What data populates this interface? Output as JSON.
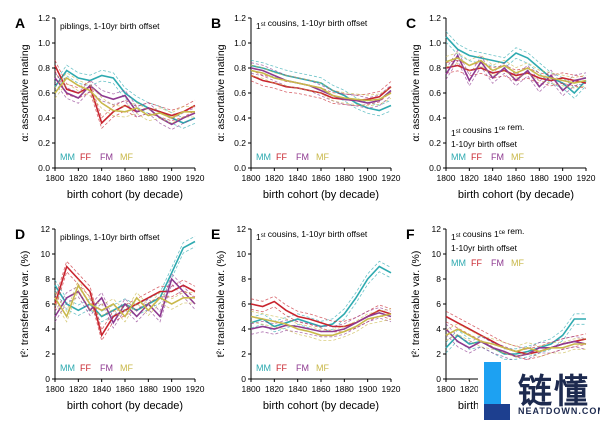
{
  "series_colors": {
    "MM": "#2eaab0",
    "FF": "#c8242e",
    "FM": "#8e3a90",
    "MF": "#c9b84a"
  },
  "watermark": {
    "big": "链懂",
    "small": "NEATDOWN.COM"
  },
  "chart_data": [
    {
      "type": "line",
      "panel": "A",
      "title": "piblings, 1-10yr birth offset",
      "xlabel": "birth cohort (by decade)",
      "ylabel": "α: assortative mating",
      "ylim": [
        0,
        1.2
      ],
      "yticks": [
        0,
        0.2,
        0.4,
        0.6,
        0.8,
        1.0,
        1.2
      ],
      "xlim": [
        1800,
        1920
      ],
      "xticks": [
        1800,
        1820,
        1840,
        1860,
        1880,
        1900,
        1920
      ],
      "legend": [
        "MM",
        "FF",
        "FM",
        "MF"
      ],
      "legend_position": "bottom-left",
      "grid": false,
      "x": [
        1800,
        1810,
        1820,
        1830,
        1840,
        1850,
        1860,
        1870,
        1880,
        1890,
        1900,
        1910,
        1920
      ],
      "series": [
        {
          "name": "MM",
          "values": [
            0.65,
            0.78,
            0.72,
            0.7,
            0.74,
            0.72,
            0.6,
            0.53,
            0.48,
            0.45,
            0.4,
            0.36,
            0.4
          ]
        },
        {
          "name": "FF",
          "values": [
            0.82,
            0.63,
            0.6,
            0.65,
            0.36,
            0.45,
            0.5,
            0.45,
            0.48,
            0.45,
            0.42,
            0.45,
            0.5
          ]
        },
        {
          "name": "FM",
          "values": [
            0.72,
            0.6,
            0.56,
            0.66,
            0.58,
            0.55,
            0.58,
            0.45,
            0.48,
            0.4,
            0.35,
            0.4,
            0.44
          ]
        },
        {
          "name": "MF",
          "values": [
            0.6,
            0.72,
            0.66,
            0.62,
            0.52,
            0.46,
            0.45,
            0.48,
            0.42,
            0.44,
            0.4,
            0.45,
            0.45
          ]
        }
      ]
    },
    {
      "type": "line",
      "panel": "B",
      "title": "1st cousins, 1-10yr birth offset",
      "xlabel": "birth cohort (by decade)",
      "ylabel": "α: assortative mating",
      "ylim": [
        0,
        1.2
      ],
      "yticks": [
        0,
        0.2,
        0.4,
        0.6,
        0.8,
        1.0,
        1.2
      ],
      "xlim": [
        1800,
        1920
      ],
      "xticks": [
        1800,
        1820,
        1840,
        1860,
        1880,
        1900,
        1920
      ],
      "legend": [
        "MM",
        "FF",
        "FM",
        "MF"
      ],
      "legend_position": "bottom-left",
      "grid": false,
      "x": [
        1800,
        1810,
        1820,
        1830,
        1840,
        1850,
        1860,
        1870,
        1880,
        1890,
        1900,
        1910,
        1920
      ],
      "series": [
        {
          "name": "MM",
          "values": [
            0.82,
            0.8,
            0.77,
            0.74,
            0.72,
            0.7,
            0.68,
            0.62,
            0.58,
            0.52,
            0.48,
            0.46,
            0.5
          ]
        },
        {
          "name": "FF",
          "values": [
            0.74,
            0.7,
            0.68,
            0.65,
            0.64,
            0.62,
            0.6,
            0.56,
            0.55,
            0.54,
            0.55,
            0.57,
            0.65
          ]
        },
        {
          "name": "FM",
          "values": [
            0.8,
            0.78,
            0.74,
            0.7,
            0.68,
            0.66,
            0.62,
            0.58,
            0.55,
            0.54,
            0.52,
            0.54,
            0.62
          ]
        },
        {
          "name": "MF",
          "values": [
            0.78,
            0.76,
            0.72,
            0.7,
            0.68,
            0.66,
            0.64,
            0.58,
            0.56,
            0.55,
            0.54,
            0.55,
            0.6
          ]
        }
      ]
    },
    {
      "type": "line",
      "panel": "C",
      "title": "1st cousins 1ce rem.",
      "title_line2": "1-10yr birth offset",
      "xlabel": "birth cohort (by decade)",
      "ylabel": "α: assortative mating",
      "ylim": [
        0,
        1.2
      ],
      "yticks": [
        0,
        0.2,
        0.4,
        0.6,
        0.8,
        1.0,
        1.2
      ],
      "xlim": [
        1800,
        1920
      ],
      "xticks": [
        1800,
        1820,
        1840,
        1860,
        1880,
        1900,
        1920
      ],
      "legend": [
        "MM",
        "FF",
        "FM",
        "MF"
      ],
      "legend_position": "bottom-left",
      "grid": false,
      "x": [
        1800,
        1810,
        1820,
        1830,
        1840,
        1850,
        1860,
        1870,
        1880,
        1890,
        1900,
        1910,
        1920
      ],
      "series": [
        {
          "name": "MM",
          "values": [
            1.05,
            0.95,
            0.9,
            0.88,
            0.86,
            0.84,
            0.92,
            0.88,
            0.8,
            0.72,
            0.68,
            0.6,
            0.7
          ]
        },
        {
          "name": "FF",
          "values": [
            0.8,
            0.82,
            0.78,
            0.8,
            0.76,
            0.78,
            0.74,
            0.76,
            0.72,
            0.7,
            0.72,
            0.7,
            0.68
          ]
        },
        {
          "name": "FM",
          "values": [
            0.75,
            0.9,
            0.7,
            0.85,
            0.72,
            0.8,
            0.7,
            0.78,
            0.65,
            0.74,
            0.62,
            0.7,
            0.72
          ]
        },
        {
          "name": "MF",
          "values": [
            0.85,
            0.88,
            0.82,
            0.86,
            0.78,
            0.82,
            0.76,
            0.8,
            0.74,
            0.72,
            0.7,
            0.68,
            0.7
          ]
        }
      ]
    },
    {
      "type": "line",
      "panel": "D",
      "title": "piblings, 1-10yr birth offset",
      "xlabel": "birth cohort (by decade)",
      "ylabel": "t²: transferable var. (%)",
      "ylim": [
        0,
        12
      ],
      "yticks": [
        0,
        2,
        4,
        6,
        8,
        10,
        12
      ],
      "xlim": [
        1800,
        1920
      ],
      "xticks": [
        1800,
        1820,
        1840,
        1860,
        1880,
        1900,
        1920
      ],
      "legend": [
        "MM",
        "FF",
        "FM",
        "MF"
      ],
      "legend_position": "bottom-left",
      "grid": false,
      "x": [
        1800,
        1810,
        1820,
        1830,
        1840,
        1850,
        1860,
        1870,
        1880,
        1890,
        1900,
        1910,
        1920
      ],
      "series": [
        {
          "name": "MM",
          "values": [
            7.5,
            6.0,
            5.5,
            6.0,
            5.0,
            5.5,
            6.0,
            5.5,
            6.0,
            6.5,
            8.5,
            10.5,
            11.0
          ]
        },
        {
          "name": "FF",
          "values": [
            6.0,
            9.0,
            8.0,
            7.0,
            3.5,
            5.0,
            5.5,
            6.0,
            6.5,
            7.0,
            7.0,
            7.5,
            7.0
          ]
        },
        {
          "name": "FM",
          "values": [
            5.0,
            6.5,
            7.0,
            5.5,
            6.5,
            4.5,
            6.0,
            5.0,
            6.0,
            5.0,
            8.0,
            7.0,
            6.0
          ]
        },
        {
          "name": "MF",
          "values": [
            6.5,
            5.0,
            7.5,
            6.0,
            5.5,
            6.0,
            5.0,
            6.5,
            5.5,
            6.5,
            6.0,
            6.5,
            6.5
          ]
        }
      ]
    },
    {
      "type": "line",
      "panel": "E",
      "title": "1st cousins, 1-10yr birth offset",
      "xlabel": "birth cohort (by decade)",
      "ylabel": "t²: transferable var. (%)",
      "ylim": [
        0,
        12
      ],
      "yticks": [
        0,
        2,
        4,
        6,
        8,
        10,
        12
      ],
      "xlim": [
        1800,
        1920
      ],
      "xticks": [
        1800,
        1820,
        1840,
        1860,
        1880,
        1900,
        1920
      ],
      "legend": [
        "MM",
        "FF",
        "FM",
        "MF"
      ],
      "legend_position": "bottom-left",
      "grid": false,
      "x": [
        1800,
        1810,
        1820,
        1830,
        1840,
        1850,
        1860,
        1870,
        1880,
        1890,
        1900,
        1910,
        1920
      ],
      "series": [
        {
          "name": "MM",
          "values": [
            4.5,
            4.8,
            4.2,
            4.5,
            4.8,
            4.5,
            4.2,
            4.4,
            5.2,
            6.5,
            8.0,
            9.0,
            8.5
          ]
        },
        {
          "name": "FF",
          "values": [
            6.0,
            5.8,
            6.2,
            5.5,
            5.0,
            4.8,
            4.5,
            4.2,
            4.2,
            4.5,
            5.0,
            5.5,
            5.2
          ]
        },
        {
          "name": "FM",
          "values": [
            4.0,
            4.2,
            4.0,
            4.3,
            4.2,
            4.0,
            3.8,
            3.8,
            4.0,
            4.5,
            5.0,
            5.3,
            5.0
          ]
        },
        {
          "name": "MF",
          "values": [
            5.0,
            4.8,
            4.6,
            4.4,
            4.0,
            3.8,
            3.5,
            3.5,
            3.8,
            4.2,
            4.8,
            5.0,
            5.2
          ]
        }
      ]
    },
    {
      "type": "line",
      "panel": "F",
      "title": "1st cousins 1ce rem.",
      "title_line2": "1-10yr birth offset",
      "xlabel": "birth cohort (by decade)",
      "ylabel": "t²: transferable var. (%)",
      "ylim": [
        0,
        12
      ],
      "yticks": [
        0,
        2,
        4,
        6,
        8,
        10,
        12
      ],
      "xlim": [
        1800,
        1920
      ],
      "xticks": [
        1800,
        1820,
        1840,
        1860,
        1880,
        1900,
        1920
      ],
      "legend": [
        "MM",
        "FF",
        "FM",
        "MF"
      ],
      "legend_position": "top-left",
      "grid": false,
      "x": [
        1800,
        1810,
        1820,
        1830,
        1840,
        1850,
        1860,
        1870,
        1880,
        1890,
        1900,
        1910,
        1920
      ],
      "series": [
        {
          "name": "MM",
          "values": [
            2.5,
            3.5,
            2.8,
            3.0,
            2.5,
            2.0,
            2.0,
            2.2,
            2.5,
            2.8,
            3.5,
            4.8,
            4.8
          ]
        },
        {
          "name": "FF",
          "values": [
            5.0,
            4.5,
            4.0,
            3.5,
            3.0,
            2.5,
            2.2,
            2.0,
            2.2,
            2.5,
            2.8,
            3.0,
            3.2
          ]
        },
        {
          "name": "FM",
          "values": [
            4.0,
            3.0,
            2.5,
            3.0,
            2.5,
            2.2,
            1.8,
            2.0,
            2.5,
            2.5,
            2.8,
            3.0,
            2.8
          ]
        },
        {
          "name": "MF",
          "values": [
            3.5,
            4.0,
            3.5,
            3.0,
            2.8,
            2.5,
            2.2,
            2.5,
            2.2,
            2.5,
            2.5,
            2.8,
            2.8
          ]
        }
      ]
    }
  ]
}
